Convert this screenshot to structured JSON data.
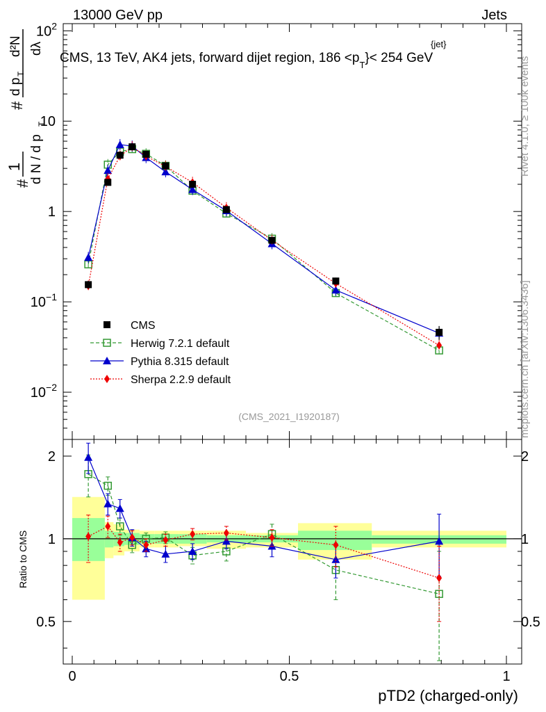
{
  "header": {
    "left": "13000 GeV pp",
    "right": "Jets",
    "title": "CMS, 13 TeV, AK4 jets, forward dijet region, 186 <p",
    "title_sup": "{jet}",
    "title_sub": "T",
    "title_end": "}< 254 GeV"
  },
  "side": {
    "rivet": "Rivet 4.1.0, ≥ 100k events",
    "mcplots": "mcplots.cern.ch [arXiv:1306.3436]"
  },
  "watermark": "(CMS_2021_I1920187)",
  "ylabel": {
    "hash": "#",
    "one": "1",
    "dn": "d N / d p",
    "dn_sub": "T",
    "hash2": "#",
    "dp": "d p",
    "dp_sub": "T",
    "d2n": "d²N",
    "dlambda": "dλ"
  },
  "ratio_ylabel": "Ratio to CMS",
  "xlabel": "pTD2 (charged-only)",
  "ticks": {
    "main_y": [
      {
        "v": 100,
        "base": "10",
        "exp": "2"
      },
      {
        "v": 10,
        "base": "10",
        "exp": ""
      },
      {
        "v": 1,
        "base": "1",
        "exp": ""
      },
      {
        "v": 0.1,
        "base": "10",
        "exp": "−1"
      },
      {
        "v": 0.01,
        "base": "10",
        "exp": "−2"
      }
    ],
    "ratio_y": [
      {
        "v": 2,
        "label": "2"
      },
      {
        "v": 1,
        "label": "1"
      },
      {
        "v": 0.5,
        "label": "0.5"
      }
    ],
    "x": [
      {
        "v": 0,
        "label": "0"
      },
      {
        "v": 0.5,
        "label": "0.5"
      },
      {
        "v": 1,
        "label": "1"
      }
    ]
  },
  "chart_data": {
    "type": "line",
    "title": "CMS, 13 TeV, AK4 jets, forward dijet region, 186 < pT^jet < 254 GeV",
    "xlabel": "pTD2 (charged-only)",
    "ylabel": "1/N dN/dlambda",
    "xlim": [
      0,
      1
    ],
    "ylim": [
      0.003,
      120
    ],
    "ratio_ylim": [
      0.35,
      2.3
    ],
    "yscale": "log",
    "ratio_yscale": "log",
    "legend_position": "bottom-left",
    "bins": [
      {
        "lo": 0.0,
        "hi": 0.075
      },
      {
        "lo": 0.075,
        "hi": 0.095
      },
      {
        "lo": 0.095,
        "hi": 0.12
      },
      {
        "lo": 0.12,
        "hi": 0.155
      },
      {
        "lo": 0.155,
        "hi": 0.19
      },
      {
        "lo": 0.19,
        "hi": 0.245
      },
      {
        "lo": 0.245,
        "hi": 0.31
      },
      {
        "lo": 0.31,
        "hi": 0.4
      },
      {
        "lo": 0.4,
        "hi": 0.52
      },
      {
        "lo": 0.52,
        "hi": 0.69
      },
      {
        "lo": 0.69,
        "hi": 1.0
      }
    ],
    "data": {
      "name": "CMS",
      "color": "#000000",
      "x": [
        0.037,
        0.082,
        0.11,
        0.138,
        0.17,
        0.215,
        0.277,
        0.355,
        0.46,
        0.607,
        0.845
      ],
      "y": [
        0.155,
        2.1,
        4.2,
        5.2,
        4.3,
        3.2,
        2.0,
        1.05,
        0.48,
        0.17,
        0.046
      ],
      "err": [
        0.015,
        0.15,
        0.25,
        0.3,
        0.25,
        0.2,
        0.12,
        0.06,
        0.035,
        0.015,
        0.008
      ],
      "stat_band": [
        [
          0.83,
          1.19
        ],
        [
          0.93,
          1.07
        ],
        [
          0.94,
          1.06
        ],
        [
          0.95,
          1.05
        ],
        [
          0.96,
          1.04
        ],
        [
          0.96,
          1.04
        ],
        [
          0.96,
          1.04
        ],
        [
          0.97,
          1.03
        ],
        [
          0.97,
          1.03
        ],
        [
          0.91,
          1.07
        ],
        [
          0.96,
          1.03
        ]
      ],
      "tot_band": [
        [
          0.6,
          1.42
        ],
        [
          0.85,
          1.15
        ],
        [
          0.87,
          1.13
        ],
        [
          0.9,
          1.08
        ],
        [
          0.93,
          1.07
        ],
        [
          0.93,
          1.07
        ],
        [
          0.94,
          1.07
        ],
        [
          0.92,
          1.07
        ],
        [
          0.93,
          1.05
        ],
        [
          0.84,
          1.14
        ],
        [
          0.93,
          1.07
        ]
      ]
    },
    "series": [
      {
        "name": "Herwig 7.2.1 default",
        "color": "#339933",
        "dash": "5,3",
        "marker": "open-square",
        "x": [
          0.037,
          0.082,
          0.11,
          0.138,
          0.17,
          0.215,
          0.277,
          0.355,
          0.46,
          0.607,
          0.845
        ],
        "y": [
          0.26,
          3.3,
          4.6,
          4.9,
          4.35,
          3.2,
          1.7,
          0.95,
          0.5,
          0.125,
          0.029
        ],
        "ratio": [
          1.72,
          1.56,
          1.11,
          0.95,
          1.0,
          1.01,
          0.87,
          0.9,
          1.04,
          0.77,
          0.63
        ],
        "ratio_err": [
          0.3,
          0.12,
          0.08,
          0.06,
          0.05,
          0.05,
          0.06,
          0.07,
          0.09,
          0.17,
          0.27
        ]
      },
      {
        "name": "Pythia 8.315 default",
        "color": "#0000cc",
        "dash": "",
        "marker": "triangle",
        "x": [
          0.037,
          0.082,
          0.11,
          0.138,
          0.17,
          0.215,
          0.277,
          0.355,
          0.46,
          0.607,
          0.845
        ],
        "y": [
          0.31,
          2.85,
          5.5,
          5.3,
          3.95,
          2.75,
          1.75,
          1.02,
          0.44,
          0.135,
          0.045
        ],
        "ratio": [
          1.98,
          1.34,
          1.29,
          1.01,
          0.92,
          0.88,
          0.9,
          0.98,
          0.94,
          0.84,
          0.98
        ],
        "ratio_err": [
          0.25,
          0.12,
          0.1,
          0.07,
          0.06,
          0.06,
          0.06,
          0.06,
          0.08,
          0.12,
          0.25
        ]
      },
      {
        "name": "Sherpa 2.2.9 default",
        "color": "#ee0000",
        "dash": "2,2",
        "marker": "diamond",
        "x": [
          0.037,
          0.082,
          0.11,
          0.138,
          0.17,
          0.215,
          0.277,
          0.355,
          0.46,
          0.607,
          0.845
        ],
        "y": [
          0.15,
          2.3,
          4.1,
          5.2,
          4.1,
          3.15,
          2.1,
          1.1,
          0.48,
          0.16,
          0.033
        ],
        "ratio": [
          1.02,
          1.11,
          0.97,
          1.01,
          0.95,
          0.99,
          1.04,
          1.05,
          1.01,
          0.95,
          0.72
        ],
        "ratio_err": [
          0.2,
          0.1,
          0.07,
          0.06,
          0.05,
          0.05,
          0.05,
          0.06,
          0.07,
          0.16,
          0.22
        ]
      }
    ]
  }
}
